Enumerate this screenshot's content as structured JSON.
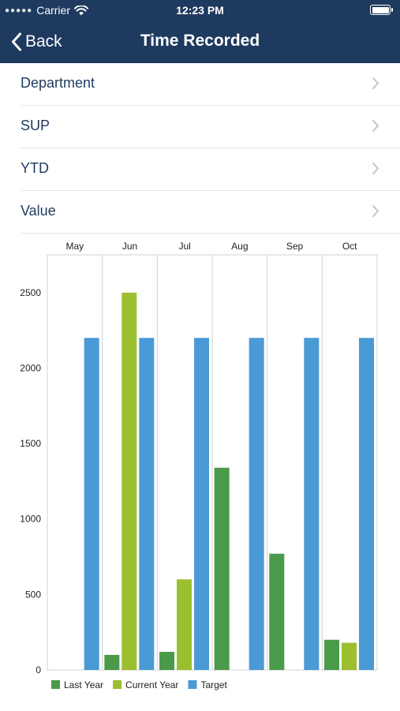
{
  "status_bar": {
    "carrier": "Carrier",
    "time": "12:23 PM"
  },
  "nav": {
    "back_label": "Back",
    "title": "Time Recorded"
  },
  "list": {
    "items": [
      {
        "label": "Department"
      },
      {
        "label": "SUP"
      },
      {
        "label": "YTD"
      },
      {
        "label": "Value"
      }
    ]
  },
  "colors": {
    "nav_bar": "#1f3a5f",
    "last_year": "#4a9a4a",
    "current_year": "#9bbf2f",
    "target": "#4a9ad6"
  },
  "chart_data": {
    "type": "bar",
    "categories": [
      "May",
      "Jun",
      "Jul",
      "Aug",
      "Sep",
      "Oct"
    ],
    "series": [
      {
        "name": "Last Year",
        "values": [
          0,
          100,
          120,
          1340,
          770,
          200
        ]
      },
      {
        "name": "Current Year",
        "values": [
          0,
          2500,
          600,
          0,
          0,
          180
        ]
      },
      {
        "name": "Target",
        "values": [
          2200,
          2200,
          2200,
          2200,
          2200,
          2200
        ]
      }
    ],
    "ylim": [
      0,
      2750
    ],
    "yticks": [
      "0",
      "500",
      "1000",
      "1500",
      "2000",
      "2500"
    ],
    "ytick_values": [
      0,
      500,
      1000,
      1500,
      2000,
      2500
    ],
    "category_labels_position": "top",
    "legend_placement": "bottom-left",
    "grid": "vertical"
  }
}
